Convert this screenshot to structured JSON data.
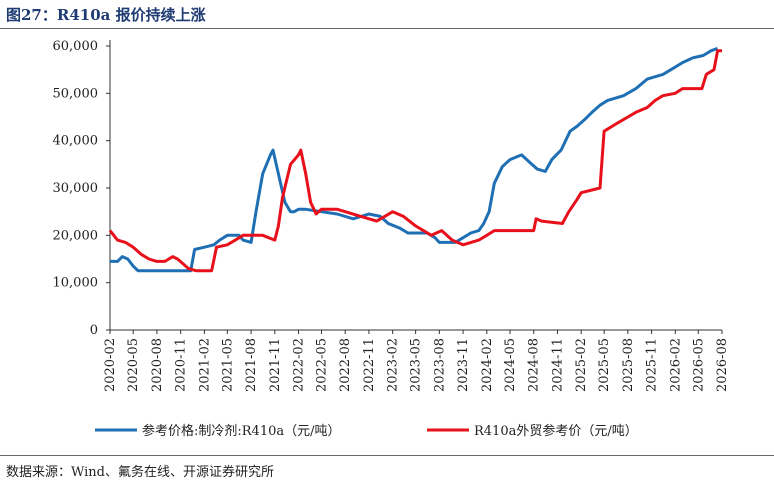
{
  "title": "图27：R410a 报价持续上涨",
  "source": "数据来源：Wind、氟务在线、开源证券研究所",
  "colors": {
    "series1": "#1f6fb5",
    "series2": "#e8101a",
    "axis": "#333333"
  },
  "chart_data": {
    "type": "line",
    "ylim": [
      0,
      60000
    ],
    "yticks": [
      0,
      10000,
      20000,
      30000,
      40000,
      50000,
      60000
    ],
    "ytick_labels": [
      "0",
      "10,000",
      "20,000",
      "30,000",
      "40,000",
      "50,000",
      "60,000"
    ],
    "xlim": [
      "2020-02",
      "2026-08"
    ],
    "xticks": [
      "2020-02",
      "2020-05",
      "2020-08",
      "2020-11",
      "2021-02",
      "2021-05",
      "2021-08",
      "2021-11",
      "2022-02",
      "2022-05",
      "2022-08",
      "2022-11",
      "2023-02",
      "2023-05",
      "2023-08",
      "2023-11",
      "2024-02",
      "2024-05",
      "2024-08",
      "2024-11",
      "2025-02",
      "2025-05",
      "2025-08",
      "2025-11",
      "2026-02",
      "2026-05",
      "2026-08"
    ],
    "legend_position": "bottom",
    "series": [
      {
        "name": "参考价格:制冷剂:R410a（元/吨）",
        "color": "#1f6fb5",
        "points": [
          [
            "2020-02-01",
            14500
          ],
          [
            "2020-03-01",
            14500
          ],
          [
            "2020-03-20",
            15500
          ],
          [
            "2020-04-10",
            15000
          ],
          [
            "2020-05-01",
            13500
          ],
          [
            "2020-05-20",
            12500
          ],
          [
            "2020-08-01",
            12500
          ],
          [
            "2020-11-01",
            12500
          ],
          [
            "2020-12-10",
            12500
          ],
          [
            "2020-12-25",
            17000
          ],
          [
            "2021-02-01",
            17500
          ],
          [
            "2021-03-10",
            18000
          ],
          [
            "2021-04-01",
            19000
          ],
          [
            "2021-05-01",
            20000
          ],
          [
            "2021-06-15",
            20000
          ],
          [
            "2021-07-01",
            19000
          ],
          [
            "2021-08-01",
            18500
          ],
          [
            "2021-08-20",
            25000
          ],
          [
            "2021-09-15",
            33000
          ],
          [
            "2021-10-15",
            37000
          ],
          [
            "2021-10-25",
            38000
          ],
          [
            "2021-11-15",
            33000
          ],
          [
            "2021-12-10",
            27000
          ],
          [
            "2022-01-01",
            25000
          ],
          [
            "2022-01-15",
            25000
          ],
          [
            "2022-02-01",
            25500
          ],
          [
            "2022-03-01",
            25500
          ],
          [
            "2022-05-01",
            25000
          ],
          [
            "2022-07-01",
            24500
          ],
          [
            "2022-09-01",
            23500
          ],
          [
            "2022-11-01",
            24500
          ],
          [
            "2022-12-15",
            24000
          ],
          [
            "2023-01-15",
            22500
          ],
          [
            "2023-03-01",
            21500
          ],
          [
            "2023-04-01",
            20500
          ],
          [
            "2023-06-15",
            20500
          ],
          [
            "2023-07-15",
            19500
          ],
          [
            "2023-08-01",
            18500
          ],
          [
            "2023-10-01",
            18500
          ],
          [
            "2023-11-01",
            19500
          ],
          [
            "2023-12-01",
            20500
          ],
          [
            "2024-01-01",
            21000
          ],
          [
            "2024-01-20",
            22500
          ],
          [
            "2024-02-10",
            25000
          ],
          [
            "2024-03-01",
            31000
          ],
          [
            "2024-04-01",
            34500
          ],
          [
            "2024-05-01",
            36000
          ],
          [
            "2024-06-15",
            37000
          ],
          [
            "2024-07-15",
            35500
          ],
          [
            "2024-08-15",
            34000
          ],
          [
            "2024-09-15",
            33500
          ],
          [
            "2024-10-10",
            36000
          ],
          [
            "2024-11-15",
            38000
          ],
          [
            "2024-12-20",
            42000
          ],
          [
            "2025-01-15",
            43000
          ],
          [
            "2025-02-15",
            44500
          ],
          [
            "2025-03-15",
            46000
          ],
          [
            "2025-04-15",
            47500
          ],
          [
            "2025-05-15",
            48500
          ],
          [
            "2025-07-15",
            49500
          ],
          [
            "2025-09-01",
            51000
          ],
          [
            "2025-10-15",
            53000
          ],
          [
            "2025-12-15",
            54000
          ],
          [
            "2026-01-15",
            55000
          ],
          [
            "2026-03-01",
            56500
          ],
          [
            "2026-04-10",
            57500
          ],
          [
            "2026-05-20",
            58000
          ],
          [
            "2026-06-20",
            59000
          ],
          [
            "2026-07-15",
            59500
          ]
        ]
      },
      {
        "name": "R410a外贸参考价（元/吨）",
        "color": "#e8101a",
        "points": [
          [
            "2020-02-01",
            21000
          ],
          [
            "2020-03-01",
            19000
          ],
          [
            "2020-04-01",
            18500
          ],
          [
            "2020-05-01",
            17500
          ],
          [
            "2020-06-01",
            16000
          ],
          [
            "2020-07-01",
            15000
          ],
          [
            "2020-08-01",
            14500
          ],
          [
            "2020-09-01",
            14500
          ],
          [
            "2020-10-01",
            15500
          ],
          [
            "2020-10-20",
            15000
          ],
          [
            "2020-12-01",
            13000
          ],
          [
            "2021-01-01",
            12500
          ],
          [
            "2021-03-01",
            12500
          ],
          [
            "2021-03-20",
            17500
          ],
          [
            "2021-05-01",
            18000
          ],
          [
            "2021-06-01",
            19000
          ],
          [
            "2021-07-01",
            20000
          ],
          [
            "2021-09-15",
            20000
          ],
          [
            "2021-11-01",
            19000
          ],
          [
            "2021-11-15",
            22000
          ],
          [
            "2021-12-01",
            28000
          ],
          [
            "2022-01-01",
            35000
          ],
          [
            "2022-02-01",
            37000
          ],
          [
            "2022-02-10",
            38000
          ],
          [
            "2022-03-01",
            33000
          ],
          [
            "2022-03-20",
            27000
          ],
          [
            "2022-04-10",
            24500
          ],
          [
            "2022-05-01",
            25500
          ],
          [
            "2022-07-01",
            25500
          ],
          [
            "2022-08-01",
            25000
          ],
          [
            "2022-10-01",
            24000
          ],
          [
            "2022-12-01",
            23000
          ],
          [
            "2023-02-01",
            25000
          ],
          [
            "2023-03-15",
            24000
          ],
          [
            "2023-05-01",
            22000
          ],
          [
            "2023-07-01",
            20000
          ],
          [
            "2023-08-10",
            21000
          ],
          [
            "2023-09-20",
            19000
          ],
          [
            "2023-11-01",
            18000
          ],
          [
            "2024-01-01",
            19000
          ],
          [
            "2024-02-01",
            20000
          ],
          [
            "2024-03-01",
            21000
          ],
          [
            "2024-08-01",
            21000
          ],
          [
            "2024-08-10",
            23500
          ],
          [
            "2024-09-01",
            23000
          ],
          [
            "2024-11-20",
            22500
          ],
          [
            "2024-12-15",
            25000
          ],
          [
            "2025-01-15",
            27500
          ],
          [
            "2025-02-01",
            29000
          ],
          [
            "2025-04-15",
            30000
          ],
          [
            "2025-05-01",
            42000
          ],
          [
            "2025-06-15",
            43500
          ],
          [
            "2025-08-01",
            45000
          ],
          [
            "2025-09-01",
            46000
          ],
          [
            "2025-10-15",
            47000
          ],
          [
            "2025-11-15",
            48500
          ],
          [
            "2025-12-15",
            49500
          ],
          [
            "2026-02-01",
            50000
          ],
          [
            "2026-03-01",
            51000
          ],
          [
            "2026-05-15",
            51000
          ],
          [
            "2026-06-01",
            54000
          ],
          [
            "2026-07-01",
            55000
          ],
          [
            "2026-07-15",
            59000
          ],
          [
            "2026-08-01",
            59000
          ]
        ]
      }
    ]
  }
}
